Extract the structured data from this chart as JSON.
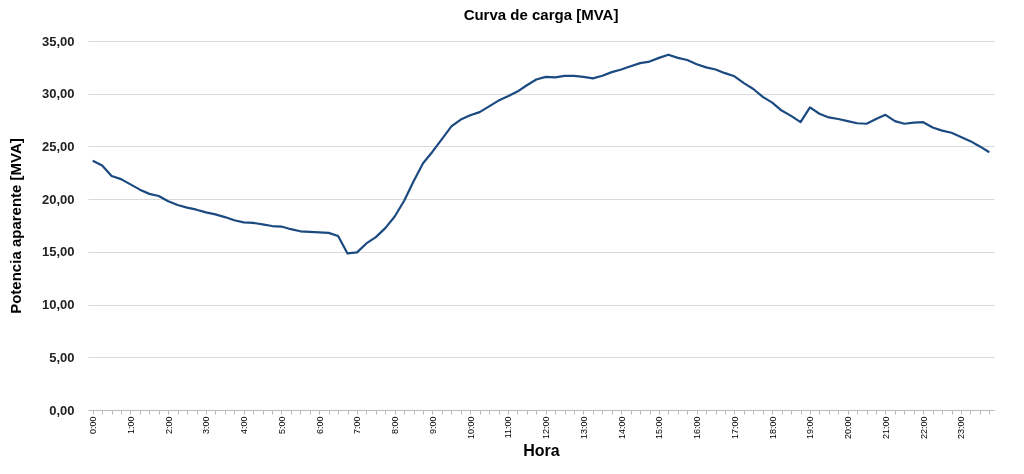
{
  "chart_data": {
    "type": "line",
    "title": "Curva de carga [MVA]",
    "xlabel": "Hora",
    "ylabel": "Potencia aparente [MVA]",
    "categories": [
      "0:00",
      null,
      null,
      null,
      "1:00",
      null,
      null,
      null,
      "2:00",
      null,
      null,
      null,
      "3:00",
      null,
      null,
      null,
      "4:00",
      null,
      null,
      null,
      "5:00",
      null,
      null,
      null,
      "6:00",
      null,
      null,
      null,
      "7:00",
      null,
      null,
      null,
      "8:00",
      null,
      null,
      null,
      "9:00",
      null,
      null,
      null,
      "10:00",
      null,
      null,
      null,
      "11:00",
      null,
      null,
      null,
      "12:00",
      null,
      null,
      null,
      "13:00",
      null,
      null,
      null,
      "14:00",
      null,
      null,
      null,
      "15:00",
      null,
      null,
      null,
      "16:00",
      null,
      null,
      null,
      "17:00",
      null,
      null,
      null,
      "18:00",
      null,
      null,
      null,
      "19:00",
      null,
      null,
      null,
      "20:00",
      null,
      null,
      null,
      "21:00",
      null,
      null,
      null,
      "22:00",
      null,
      null,
      null,
      "23:00",
      null,
      null,
      null
    ],
    "series": [
      {
        "color": "#1b4a80",
        "values": [
          23.65,
          23.2,
          22.2,
          21.9,
          21.4,
          20.9,
          20.5,
          20.3,
          19.8,
          19.45,
          19.2,
          19.0,
          18.75,
          18.55,
          18.3,
          18.0,
          17.8,
          17.75,
          17.6,
          17.45,
          17.4,
          17.15,
          16.95,
          16.9,
          16.85,
          16.8,
          16.5,
          14.85,
          14.95,
          15.8,
          16.4,
          17.25,
          18.35,
          19.85,
          21.7,
          23.4,
          24.5,
          25.7,
          26.9,
          27.55,
          27.95,
          28.25,
          28.8,
          29.35,
          29.75,
          30.2,
          30.8,
          31.35,
          31.6,
          31.55,
          31.7,
          31.7,
          31.6,
          31.45,
          31.7,
          32.05,
          32.3,
          32.6,
          32.9,
          33.05,
          33.4,
          33.7,
          33.4,
          33.2,
          32.8,
          32.5,
          32.3,
          31.95,
          31.65,
          31.0,
          30.45,
          29.7,
          29.15,
          28.4,
          27.9,
          27.3,
          28.7,
          28.1,
          27.75,
          27.6,
          27.4,
          27.2,
          27.15,
          27.6,
          28.0,
          27.4,
          27.15,
          27.25,
          27.3,
          26.8,
          26.5,
          26.3,
          25.9,
          25.5,
          25.0,
          24.45
        ]
      }
    ],
    "ylim": [
      0,
      35
    ],
    "yticks": [
      {
        "value": 0,
        "label": "0,00"
      },
      {
        "value": 5,
        "label": "5,00"
      },
      {
        "value": 10,
        "label": "10,00"
      },
      {
        "value": 15,
        "label": "15,00"
      },
      {
        "value": 20,
        "label": "20,00"
      },
      {
        "value": 25,
        "label": "25,00"
      },
      {
        "value": 30,
        "label": "30,00"
      },
      {
        "value": 35,
        "label": "35,00"
      }
    ],
    "grid": "y",
    "marker": "none",
    "line_style": "solid"
  }
}
